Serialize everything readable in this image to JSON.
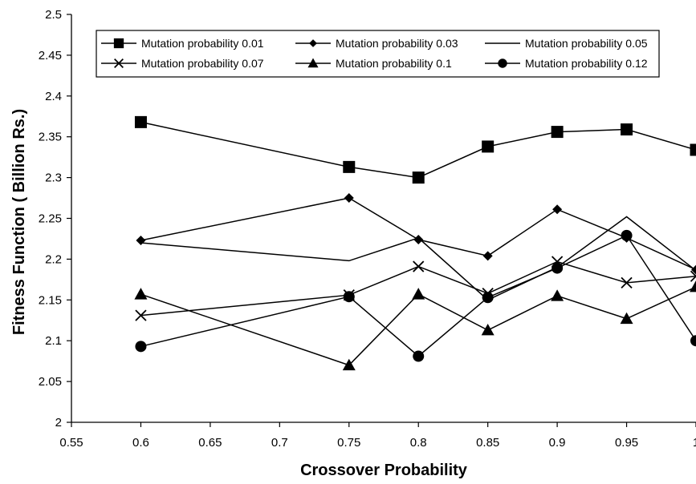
{
  "chart_data": {
    "type": "line",
    "xlabel": "Crossover Probability",
    "ylabel": "Fitness Function ( Billion Rs.)",
    "xlim": [
      0.55,
      1.0
    ],
    "ylim": [
      2.0,
      2.5
    ],
    "x_ticks": [
      "0.55",
      "0.6",
      "0.65",
      "0.7",
      "0.75",
      "0.8",
      "0.85",
      "0.9",
      "0.95",
      "1"
    ],
    "y_ticks": [
      "2",
      "2.05",
      "2.1",
      "2.15",
      "2.2",
      "2.25",
      "2.3",
      "2.35",
      "2.4",
      "2.45",
      "2.5"
    ],
    "x": [
      0.6,
      0.75,
      0.8,
      0.85,
      0.9,
      0.95,
      1.0
    ],
    "legend_position": "top",
    "grid": false,
    "series": [
      {
        "name": "Mutation probability 0.01",
        "marker": "square",
        "values": [
          2.368,
          2.313,
          2.3,
          2.338,
          2.356,
          2.359,
          2.334
        ]
      },
      {
        "name": "Mutation probability 0.03",
        "marker": "diamond",
        "values": [
          2.223,
          2.275,
          2.224,
          2.204,
          2.261,
          2.226,
          2.187
        ]
      },
      {
        "name": "Mutation probability 0.05",
        "marker": "none",
        "values": [
          2.22,
          2.198,
          2.226,
          2.15,
          2.19,
          2.252,
          2.186
        ]
      },
      {
        "name": "Mutation probability 0.07",
        "marker": "x",
        "values": [
          2.131,
          2.156,
          2.191,
          2.158,
          2.197,
          2.171,
          2.179
        ]
      },
      {
        "name": "Mutation probability 0.1",
        "marker": "triangle",
        "values": [
          2.157,
          2.07,
          2.157,
          2.113,
          2.155,
          2.127,
          2.166
        ]
      },
      {
        "name": "Mutation probability 0.12",
        "marker": "circle",
        "values": [
          2.093,
          2.154,
          2.081,
          2.153,
          2.189,
          2.229,
          2.1
        ]
      }
    ]
  }
}
